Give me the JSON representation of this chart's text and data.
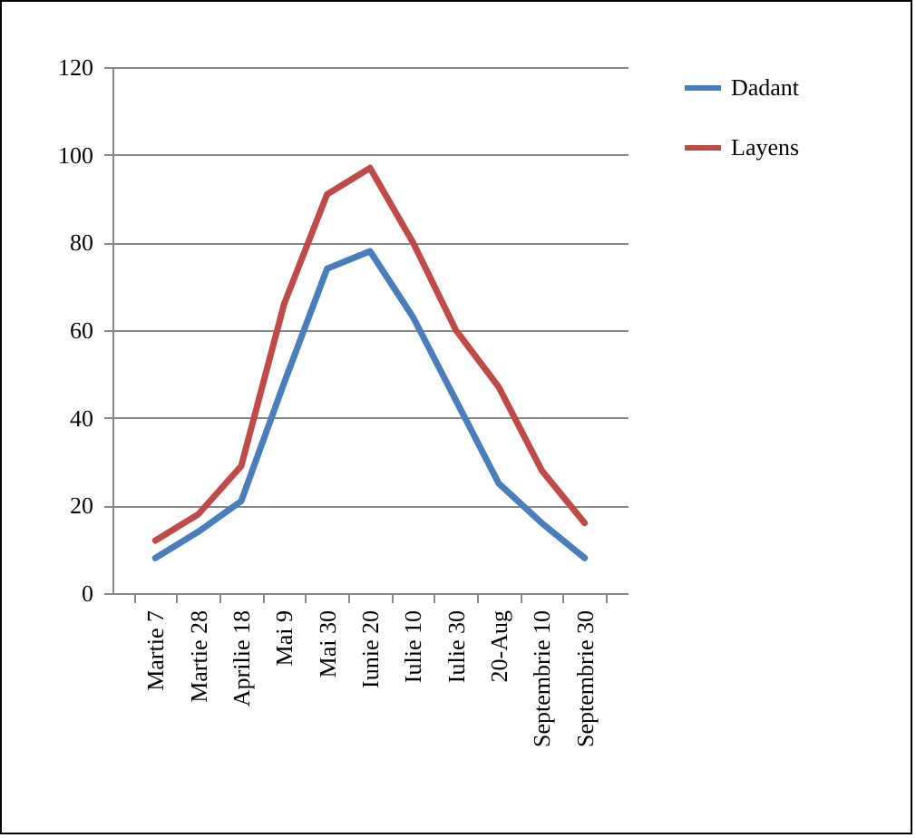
{
  "chart_data": {
    "type": "line",
    "categories": [
      "Martie 7",
      "Martie 28",
      "Aprilie 18",
      "Mai 9",
      "Mai 30",
      "Iunie 20",
      "Iulie 10",
      "Iulie 30",
      "20-Aug",
      "Septembrie 10",
      "Septembrie 30"
    ],
    "series": [
      {
        "name": "Dadant",
        "color": "#4a7ebb",
        "values": [
          8,
          14,
          21,
          48,
          74,
          78,
          63,
          44,
          25,
          16,
          8
        ]
      },
      {
        "name": "Layens",
        "color": "#be4b48",
        "values": [
          12,
          18,
          29,
          66,
          91,
          97,
          80,
          60,
          47,
          28,
          16
        ]
      }
    ],
    "ylim": [
      0,
      120
    ],
    "yticks": [
      0,
      20,
      40,
      60,
      80,
      100,
      120
    ],
    "grid": "y",
    "legend": "right",
    "marker": "none",
    "line_style": "solid"
  }
}
